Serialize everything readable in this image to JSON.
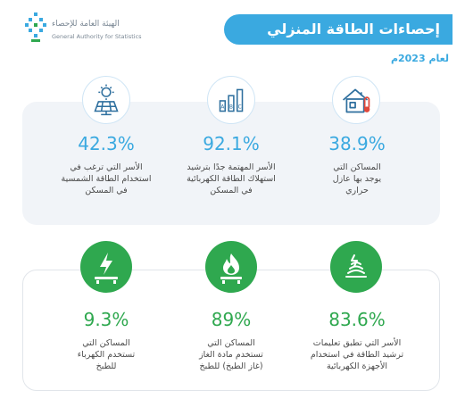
{
  "logo": {
    "name_ar": "الهيئة العامة للإحصاء",
    "name_en": "General Authority for Statistics"
  },
  "header": {
    "title": "إحصاءات الطاقة المنزلي",
    "year_label": "لعام 2023م"
  },
  "colors": {
    "accent_blue": "#3aa9e0",
    "accent_green": "#2fa84f"
  },
  "stats_top": [
    {
      "icon": "insulated-house-thermometer-icon",
      "value": "38.9%",
      "lines": [
        "المساكن التي",
        "يوجد بها عازل",
        "حراري"
      ]
    },
    {
      "icon": "abc-energy-rating-icon",
      "value": "92.1%",
      "lines": [
        "الأسر المهتمة جدًا بترشيد",
        "استهلاك الطاقة الكهربائية",
        "في المسكن"
      ]
    },
    {
      "icon": "solar-panel-icon",
      "value": "42.3%",
      "lines": [
        "الأسر التي ترغب في",
        "استخدام الطاقة الشمسية",
        "في المسكن"
      ]
    }
  ],
  "stats_bottom": [
    {
      "icon": "energy-saving-guide-icon",
      "value": "83.6%",
      "lines": [
        "الأسر التي تطبق تعليمات",
        "ترشيد الطاقة في استخدام",
        "الأجهزة الكهربائية"
      ]
    },
    {
      "icon": "gas-flame-stove-icon",
      "value": "89%",
      "lines": [
        "المساكن التي",
        "تستخدم مادة الغاز",
        "(غاز الطبخ) للطبخ"
      ]
    },
    {
      "icon": "electric-stove-icon",
      "value": "9.3%",
      "lines": [
        "المساكن التي",
        "تستخدم الكهرباء",
        "للطبخ"
      ]
    }
  ]
}
